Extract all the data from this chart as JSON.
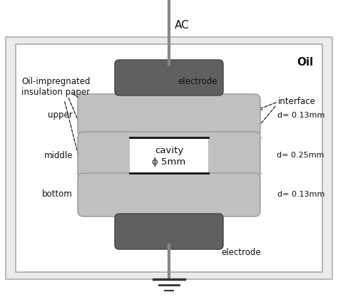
{
  "fig_width": 4.74,
  "fig_height": 4.24,
  "dpi": 100,
  "bg_color": "#ffffff",
  "outer_box_edge": "#cccccc",
  "outer_box_fill": "#e8e8e8",
  "inner_box_edge": "#bbbbbb",
  "inner_box_fill": "#ffffff",
  "electrode_color": "#606060",
  "paper_color": "#c0c0c0",
  "line_color": "#111111",
  "text_color": "#111111",
  "ac_label": "AC",
  "oil_label": "Oil",
  "upper_label": "upper",
  "middle_label": "middle",
  "bottom_label": "bottom",
  "electrode_label_top": "electrode",
  "electrode_label_bot": "electrode",
  "interface_label": "interface",
  "cavity_line1": "cavity",
  "cavity_line2": "ϕ 5mm",
  "paper_label": "Oil-impregnated\ninsulation paper",
  "d1_label": "d= 0.13mm",
  "d2_label": "d= 0.25mm",
  "d3_label": "d= 0.13mm"
}
